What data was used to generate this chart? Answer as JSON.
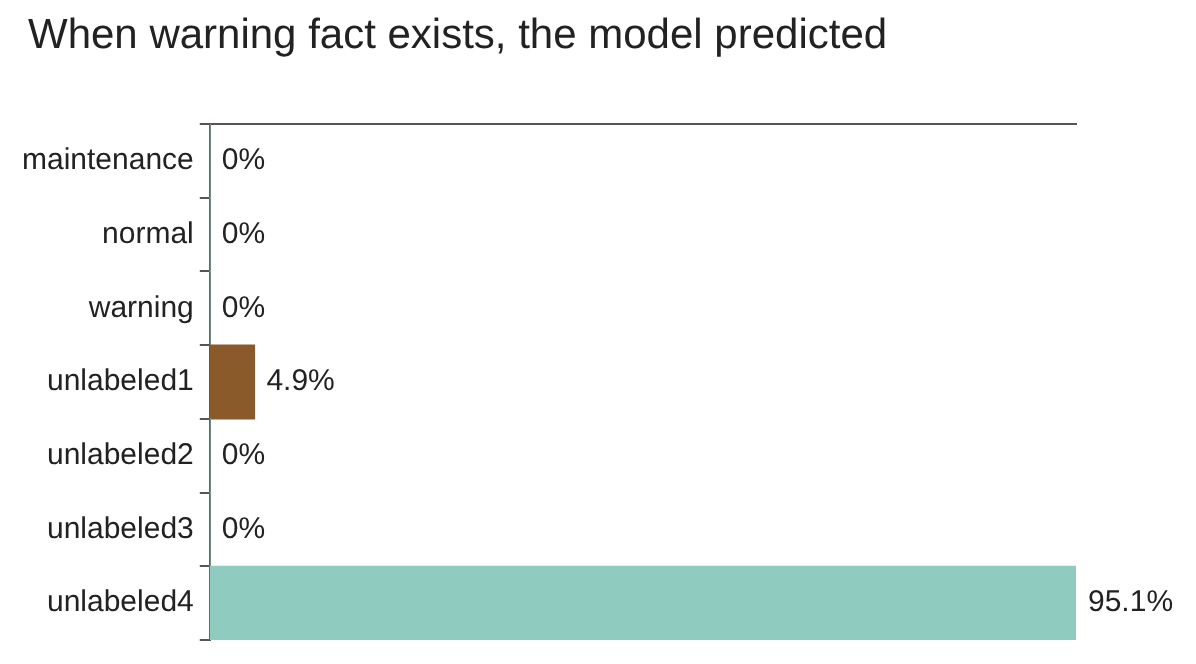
{
  "chart_data": {
    "type": "bar",
    "orientation": "horizontal",
    "title": "When warning fact exists, the model predicted",
    "categories": [
      "maintenance",
      "normal",
      "warning",
      "unlabeled1",
      "unlabeled2",
      "unlabeled3",
      "unlabeled4"
    ],
    "values": [
      0,
      0,
      0,
      4.9,
      0,
      0,
      95.1
    ],
    "colors": [
      "#90cbc0",
      "#90cbc0",
      "#90cbc0",
      "#8b5a2b",
      "#90cbc0",
      "#90cbc0",
      "#90cbc0"
    ],
    "value_labels": [
      "0%",
      "0%",
      "0%",
      "4.9%",
      "0%",
      "0%",
      "95.1%"
    ],
    "grid": false,
    "legend": false
  }
}
